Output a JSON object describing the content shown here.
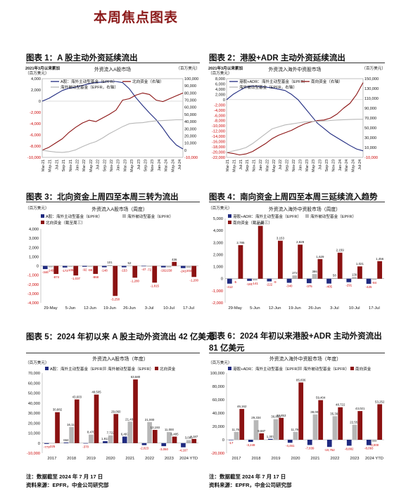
{
  "page": {
    "title": "本周焦点图表"
  },
  "notes": {
    "left": [
      "注：数据截至 2024 年 7 月 17 日",
      "资料来源：EPFR，中金公司研究部"
    ],
    "right": [
      "注：数据截至 2024 年 7 月 17 日",
      "资料来源：EPFR，中金公司研究部"
    ]
  },
  "colors": {
    "navy": "#1f2a80",
    "red": "#8b1212",
    "gray": "#b7b7b7",
    "title_red": "#8b1a1a"
  },
  "chart_data": [
    {
      "id": "fig1",
      "type": "line",
      "figure_title": "图表 1：A 股主动外资延续流出",
      "title": "外资流入A股市场",
      "note_tl": "2021年3月以来累加",
      "unit_left": "（百万美元）",
      "unit_right": "（百万美元）",
      "left_ticks": [
        "4,000",
        "2,000",
        "0",
        "-2,000",
        "-4,000",
        "-6,000",
        "-8,000",
        "-10,000"
      ],
      "right_ticks": [
        "100,000",
        "90,000",
        "80,000",
        "70,000",
        "60,000",
        "50,000",
        "40,000",
        "30,000",
        "20,000",
        "10,000",
        "0",
        "-10,000"
      ],
      "ylim_left": [
        -10000,
        4000
      ],
      "ylim_right": [
        -10000,
        100000
      ],
      "x_labels": [
        "Mar-21",
        "May-21",
        "Jul-21",
        "Sep-21",
        "Nov-21",
        "Jan-22",
        "Mar-22",
        "May-22",
        "Jul-22",
        "Sep-22",
        "Nov-22",
        "Jan-23",
        "Mar-23",
        "May-23",
        "Jul-23",
        "Sep-23",
        "Nov-23",
        "Jan-24",
        "Mar-24",
        "May-24",
        "Jul-24"
      ],
      "legend": [
        "A股：海外主动型基金（EPFR）",
        "北向资金（右轴）",
        "海外被动型基金（EPFR，右轴）"
      ],
      "series": [
        {
          "name": "A股：海外主动型基金（EPFR）",
          "axis": "left",
          "color": "navy",
          "values": [
            0,
            500,
            1200,
            1900,
            2300,
            2500,
            2800,
            3100,
            3300,
            3400,
            3500,
            3500,
            3300,
            2200,
            600,
            -800,
            -2100,
            -3300,
            -4800,
            -6500,
            -7800,
            -8500
          ]
        },
        {
          "name": "北向资金（右轴）",
          "axis": "right",
          "color": "red",
          "values": [
            0,
            4000,
            10000,
            16000,
            25000,
            32000,
            38000,
            42000,
            40000,
            45000,
            50000,
            56000,
            70000,
            72000,
            77000,
            80000,
            78000,
            70000,
            68000,
            72000,
            76000,
            80000
          ]
        },
        {
          "name": "海外被动型基金（EPFR，右轴）",
          "axis": "right",
          "color": "gray",
          "values": [
            0,
            -1500,
            -2500,
            -3000,
            -2000,
            500,
            5000,
            9000,
            12000,
            17000,
            23000,
            28000,
            33000,
            37000,
            38000,
            38500,
            40000,
            41000,
            41500,
            42000,
            42500,
            42500
          ]
        }
      ]
    },
    {
      "id": "fig2",
      "type": "line",
      "figure_title": "图表 2：港股+ADR 主动外资延续流出",
      "title": "外资流入海外中资股市场",
      "note_tl": "2021年3月以来累加",
      "unit_left": "（百万美元）",
      "unit_right": "（百万美元）",
      "left_ticks": [
        "8,000",
        "6,000",
        "4,000",
        "2,000",
        "0",
        "-2,000",
        "-4,000",
        "-6,000",
        "-8,000",
        "-10,000",
        "-12,000",
        "-14,000",
        "-16,000",
        "-18,000",
        "-20,000",
        "-22,000"
      ],
      "right_ticks": [
        "150,000",
        "130,000",
        "110,000",
        "90,000",
        "70,000",
        "50,000",
        "30,000",
        "10,000",
        "-10,000"
      ],
      "ylim_left": [
        -22000,
        8000
      ],
      "ylim_right": [
        -10000,
        150000
      ],
      "x_labels": [
        "Mar-21",
        "May-21",
        "Jul-21",
        "Sep-21",
        "Nov-21",
        "Jan-22",
        "Mar-22",
        "May-22",
        "Jul-22",
        "Sep-22",
        "Nov-22",
        "Jan-23",
        "Mar-23",
        "May-23",
        "Jul-23",
        "Sep-23",
        "Nov-23",
        "Jan-24",
        "Mar-24",
        "May-24",
        "Jul-24"
      ],
      "legend": [
        "港股+ADR：海外主动型基金（EPFR）",
        "南向资金（右轴）",
        "海外被动型基金（EPFR，右轴）"
      ],
      "series": [
        {
          "name": "港股+ADR：海外主动型基金（EPFR）",
          "axis": "left",
          "color": "navy",
          "values": [
            0,
            2000,
            3500,
            4800,
            5200,
            5000,
            4800,
            4500,
            4000,
            3500,
            2000,
            0,
            -3000,
            -6000,
            -9000,
            -11000,
            -13000,
            -14500,
            -16000,
            -17500,
            -18800,
            -19500
          ]
        },
        {
          "name": "南向资金（右轴）",
          "axis": "right",
          "color": "red",
          "values": [
            0,
            -2000,
            -5000,
            -3000,
            2000,
            10000,
            18000,
            28000,
            35000,
            40000,
            45000,
            52000,
            58000,
            62000,
            65000,
            66000,
            70000,
            78000,
            90000,
            100000,
            118000,
            142000
          ]
        },
        {
          "name": "海外被动型基金（EPFR，右轴）",
          "axis": "right",
          "color": "gray",
          "values": [
            0,
            3000,
            6000,
            10000,
            18000,
            28000,
            38000,
            48000,
            52000,
            56000,
            58000,
            60000,
            62000,
            63000,
            63500,
            64000,
            65000,
            66000,
            66500,
            67000,
            67500,
            67500
          ]
        }
      ]
    },
    {
      "id": "fig3",
      "type": "bar",
      "figure_title": "图表 3：北向资金上周四至本周三转为流出",
      "title": "外资流入A股市场（周度）",
      "unit": "（百万美元）",
      "y_ticks": [
        "4,000",
        "3,000",
        "2,000",
        "1,000",
        "0",
        "-1,000",
        "-2,000",
        "-3,000",
        "-4,000"
      ],
      "ylim": [
        -4000,
        4000
      ],
      "categories": [
        "29-May",
        "5-Jun",
        "12-Jun",
        "19-Jun",
        "26-Jun",
        "3-Jul",
        "10-Jul",
        "17-Jul"
      ],
      "legend": [
        "A股：海外主动型基金（EPFR）",
        "海外被动型基金（EPFR）",
        "北向资金（截至周三）"
      ],
      "series": [
        {
          "name": "A股：海外主动型基金（EPFR）",
          "color": "navy",
          "values": [
            -346,
            -172,
            -92,
            -148,
            -153,
            -47,
            -162,
            -241
          ],
          "labels": [
            "-346",
            "-172",
            "-92",
            "-148",
            "-153",
            "-47",
            "-162",
            "-241"
          ]
        },
        {
          "name": "海外被动型基金（EPFR）",
          "color": "gray",
          "values": [
            -149,
            -105,
            -99,
            101,
            52,
            -72,
            -158,
            -204
          ],
          "labels": [
            "-149",
            "-105",
            "-99",
            "101",
            "52",
            "-72",
            "-158",
            "-204"
          ]
        },
        {
          "name": "北向资金（截至周三）",
          "color": "red",
          "values": [
            -874,
            -1037,
            -868,
            -3258,
            -1280,
            -1815,
            436,
            -1200
          ],
          "labels": [
            "-874",
            "-1,037",
            "-868",
            "-3,258",
            "-1,280",
            "-1,815",
            "436",
            "-1,200"
          ]
        }
      ]
    },
    {
      "id": "fig4",
      "type": "bar",
      "figure_title": "图表 4：南向资金上周四至本周三延续流入趋势",
      "title": "外资流入海外中资股市场（周度）",
      "unit": "（百万美元）",
      "y_ticks": [
        "5,000",
        "4,000",
        "3,000",
        "2,000",
        "1,000",
        "0",
        "-1,000",
        "-2,000"
      ],
      "ylim": [
        -2000,
        5000
      ],
      "categories": [
        "29-May",
        "5-Jun",
        "12-Jun",
        "19-Jun",
        "26-Jun",
        "3-Jul",
        "10-Jul",
        "17-Jul"
      ],
      "legend": [
        "港股+ADR：海外主动型基金（EPFR）",
        "海外被动型基金（EPFR）",
        "南向资金（截至周三）"
      ],
      "series": [
        {
          "name": "港股+ADR：海外主动型基金（EPFR）",
          "color": "navy",
          "values": [
            -412,
            -181,
            -222,
            -340,
            -375,
            -405,
            -291,
            -425
          ],
          "labels": [
            "-412",
            "-181",
            "-222",
            "-340",
            "-375",
            "-405",
            "-291",
            "-425"
          ]
        },
        {
          "name": "海外被动型基金（EPFR）",
          "color": "gray",
          "values": [
            -5,
            -141,
            -9,
            272,
            386,
            58,
            139,
            -84
          ],
          "labels": [
            "-5",
            "-141",
            "-9",
            "272",
            "386",
            "58",
            "139",
            "-84"
          ]
        },
        {
          "name": "南向资金（截至周三）",
          "color": "red",
          "values": [
            2785,
            4387,
            3153,
            2829,
            1629,
            2159,
            1021,
            1456
          ],
          "labels": [
            "2,785",
            "4,387",
            "3,153",
            "2,829",
            "1,629",
            "2,159",
            "1,021",
            "1,456"
          ]
        }
      ]
    },
    {
      "id": "fig5",
      "type": "bar",
      "figure_title": "图表 5：2024 年初以来 A 股主动外资流出 42 亿美元",
      "title": "外资流入A股市场（年度）",
      "unit": "（百万美元）",
      "y_ticks": [
        "70,000",
        "60,000",
        "50,000",
        "40,000",
        "30,000",
        "20,000",
        "10,000",
        "0",
        "-10,000"
      ],
      "ylim": [
        -10000,
        70000
      ],
      "categories": [
        "2017",
        "2018",
        "2019",
        "2020",
        "2021",
        "2022",
        "2023",
        "2024 YTD"
      ],
      "legend": [
        "A股：海外主动型基金（EPFR）",
        "海外被动型基金（EPFR）",
        "北向资金"
      ],
      "series": [
        {
          "name": "A股：海外主动型基金（EPFR）",
          "color": "navy",
          "values": [
            -773,
            664,
            -370,
            1913,
            6497,
            -2023,
            -3050,
            -4167
          ],
          "labels": [
            "-773",
            "664",
            "-370",
            "1,913",
            "6,497",
            "-2,023",
            "-3,050",
            "-4,167"
          ]
        },
        {
          "name": "海外被动型基金（EPFR）",
          "color": "gray",
          "values": [
            -225,
            16110,
            8470,
            7722,
            21400,
            21000,
            11000,
            3000
          ],
          "labels": [
            "-225",
            "16,110",
            "8,470",
            "7,722",
            "21,400",
            "21,000",
            "11,000",
            "3,000"
          ]
        },
        {
          "name": "北向资金",
          "color": "red",
          "values": [
            30882,
            43603,
            48505,
            29060,
            63580,
            13193,
            6485,
            4187
          ],
          "labels": [
            "30,882",
            "43,603",
            "48,505",
            "29,060",
            "63,580",
            "13,193",
            "6,485",
            "4,187"
          ]
        }
      ]
    },
    {
      "id": "fig6",
      "type": "bar",
      "figure_title": "图表 6：2024 年初以来港股+ADR 主动外资流出 81 亿美元",
      "title": "外资流入海外中资股市场（年度）",
      "unit": "（百万美元）",
      "y_ticks": [
        "100,000",
        "80,000",
        "60,000",
        "40,000",
        "20,000",
        "0",
        "-20,000"
      ],
      "ylim": [
        -20000,
        100000
      ],
      "categories": [
        "2017",
        "2018",
        "2019",
        "2020",
        "2021",
        "2022",
        "2023",
        "2024 YTD"
      ],
      "legend": [
        "港股+ADR：海外主动型基金（EPFR）",
        "海外被动型基金（EPFR）",
        "南向资金"
      ],
      "series": [
        {
          "name": "港股+ADR：海外主动型基金（EPFR）",
          "color": "navy",
          "values": [
            -17,
            -3249,
            1307,
            -4461,
            -7839,
            -10752,
            -8882,
            -8093
          ],
          "labels": [
            "-17",
            "-3,249",
            "1,307",
            "-4,461",
            "-7,839",
            "-10,752",
            "-8,882",
            "-8,093"
          ]
        },
        {
          "name": "海外被动型基金（EPFR）",
          "color": "gray",
          "values": [
            11762,
            29334,
            30853,
            11794,
            38000,
            35391,
            22551,
            -3000
          ],
          "labels": [
            "11,762",
            "29,334",
            "30,853",
            "11,794",
            "38,000",
            "35,391",
            "22,551",
            "-3,000"
          ]
        },
        {
          "name": "南向资金",
          "color": "red",
          "values": [
            46162,
            9687,
            32853,
            85836,
            59404,
            48722,
            43021,
            53252
          ],
          "labels": [
            "46,162",
            "9,687",
            "32,853",
            "85,836",
            "59,404",
            "48,722",
            "43,021",
            "53,252"
          ]
        }
      ]
    }
  ]
}
